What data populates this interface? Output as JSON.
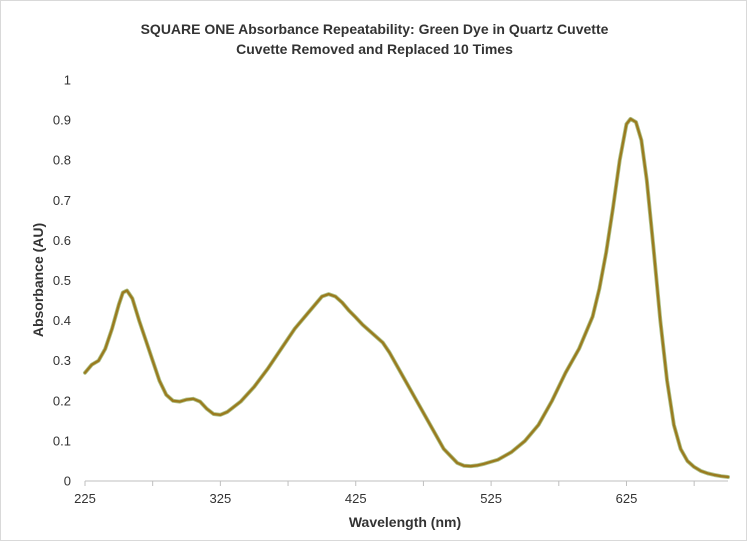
{
  "chart_data": {
    "type": "line",
    "title": "SQUARE ONE Absorbance Repeatability: Green Dye in Quartz Cuvette",
    "subtitle": "Cuvette Removed and Replaced 10 Times",
    "xlabel": "Wavelength (nm)",
    "ylabel": "Absorbance (AU)",
    "xlim": [
      225,
      700
    ],
    "ylim": [
      0,
      1
    ],
    "x_ticks": [
      "225",
      "325",
      "425",
      "525",
      "625"
    ],
    "y_ticks": [
      "0",
      "0.1",
      "0.2",
      "0.3",
      "0.4",
      "0.5",
      "0.6",
      "0.7",
      "0.8",
      "0.9",
      "1"
    ],
    "grid": false,
    "legend": "none",
    "series_color": "#9a7b1f",
    "series_highlight": "#6b8f2a",
    "series": [
      {
        "x": [
          225,
          230,
          235,
          240,
          245,
          250,
          253,
          256,
          260,
          265,
          270,
          275,
          280,
          285,
          290,
          295,
          300,
          305,
          310,
          315,
          320,
          325,
          330,
          335,
          340,
          350,
          360,
          370,
          380,
          390,
          400,
          405,
          410,
          415,
          420,
          425,
          430,
          435,
          440,
          445,
          450,
          455,
          460,
          470,
          480,
          490,
          500,
          505,
          510,
          515,
          520,
          530,
          540,
          550,
          560,
          570,
          580,
          590,
          600,
          605,
          610,
          615,
          620,
          625,
          628,
          632,
          636,
          640,
          645,
          650,
          655,
          660,
          665,
          670,
          675,
          680,
          685,
          690,
          695,
          700
        ],
        "y": [
          0.27,
          0.29,
          0.3,
          0.33,
          0.38,
          0.44,
          0.47,
          0.475,
          0.455,
          0.4,
          0.35,
          0.3,
          0.25,
          0.215,
          0.2,
          0.198,
          0.203,
          0.205,
          0.198,
          0.18,
          0.167,
          0.165,
          0.172,
          0.185,
          0.198,
          0.235,
          0.28,
          0.33,
          0.38,
          0.42,
          0.46,
          0.466,
          0.46,
          0.445,
          0.425,
          0.408,
          0.39,
          0.375,
          0.36,
          0.345,
          0.32,
          0.29,
          0.26,
          0.2,
          0.14,
          0.08,
          0.045,
          0.038,
          0.037,
          0.039,
          0.043,
          0.053,
          0.072,
          0.1,
          0.14,
          0.2,
          0.27,
          0.33,
          0.41,
          0.48,
          0.57,
          0.68,
          0.8,
          0.89,
          0.903,
          0.895,
          0.85,
          0.75,
          0.58,
          0.4,
          0.25,
          0.14,
          0.08,
          0.05,
          0.035,
          0.025,
          0.019,
          0.015,
          0.012,
          0.01
        ]
      }
    ]
  }
}
